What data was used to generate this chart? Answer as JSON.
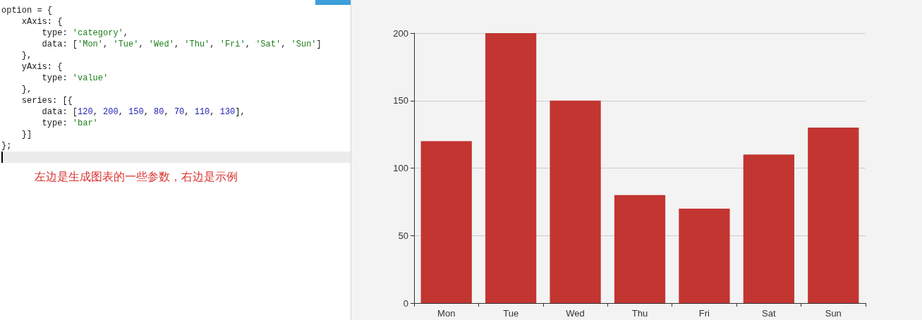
{
  "chart_data": {
    "type": "bar",
    "categories": [
      "Mon",
      "Tue",
      "Wed",
      "Thu",
      "Fri",
      "Sat",
      "Sun"
    ],
    "values": [
      120,
      200,
      150,
      80,
      70,
      110,
      130
    ],
    "color": "#c23531",
    "ylim": [
      0,
      200
    ],
    "yticks": [
      0,
      50,
      100,
      150,
      200
    ],
    "grid": "y",
    "annotations": [
      "option = {",
      "    xAxis: {",
      "        type: 'category',",
      "        data: ['Mon', 'Tue', 'Wed', 'Thu', 'Fri', 'Sat', 'Sun']",
      "    },",
      "    yAxis: {",
      "        type: 'value'",
      "    },",
      "    series: [{",
      "        data: [120, 200, 150, 80, 70, 110, 130],",
      "        type: 'bar'",
      "    }]",
      "};",
      "左边是生成图表的一些参数，右边是示例"
    ]
  }
}
